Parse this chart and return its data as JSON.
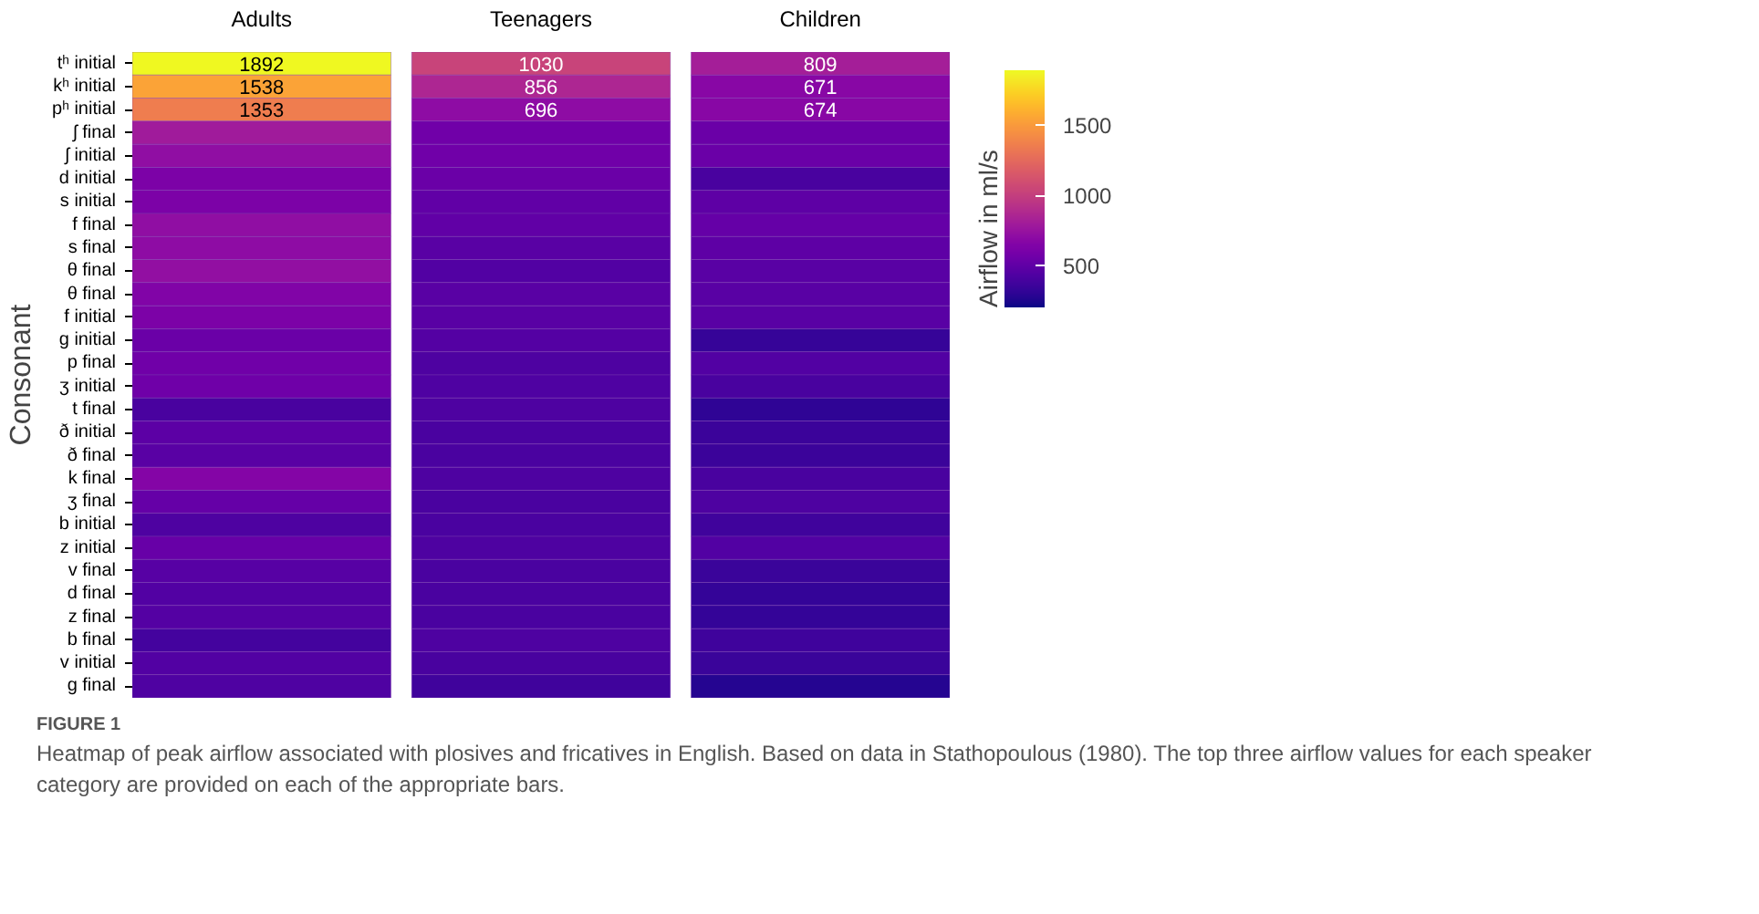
{
  "chart_data": {
    "type": "heatmap",
    "ylabel": "Consonant",
    "categories": [
      "Adults",
      "Teenagers",
      "Children"
    ],
    "y_categories": [
      "tʰ initial",
      "kʰ initial",
      "pʰ initial",
      "ʃ final",
      "ʃ initial",
      "d initial",
      "s initial",
      "f final",
      "s final",
      "θ final",
      "θ final",
      "f initial",
      "g initial",
      "p final",
      "ʒ initial",
      "t final",
      "ð initial",
      "ð final",
      "k final",
      "ʒ final",
      "b initial",
      "z initial",
      "v final",
      "d final",
      "z final",
      "b final",
      "v initial",
      "g final"
    ],
    "cells": [
      [
        1892,
        1030,
        809
      ],
      [
        1538,
        856,
        671
      ],
      [
        1353,
        696,
        674
      ],
      [
        790,
        570,
        540
      ],
      [
        710,
        570,
        540
      ],
      [
        620,
        540,
        400
      ],
      [
        620,
        500,
        490
      ],
      [
        710,
        500,
        520
      ],
      [
        700,
        470,
        490
      ],
      [
        720,
        440,
        470
      ],
      [
        640,
        470,
        470
      ],
      [
        620,
        470,
        470
      ],
      [
        540,
        450,
        330
      ],
      [
        570,
        420,
        440
      ],
      [
        560,
        430,
        400
      ],
      [
        400,
        420,
        300
      ],
      [
        480,
        410,
        350
      ],
      [
        470,
        410,
        350
      ],
      [
        650,
        420,
        400
      ],
      [
        520,
        410,
        420
      ],
      [
        420,
        410,
        370
      ],
      [
        530,
        420,
        440
      ],
      [
        460,
        410,
        340
      ],
      [
        440,
        410,
        320
      ],
      [
        450,
        410,
        320
      ],
      [
        380,
        420,
        360
      ],
      [
        440,
        400,
        340
      ],
      [
        430,
        370,
        270
      ]
    ],
    "cell_labels": [
      [
        "1892",
        "1030",
        "809"
      ],
      [
        "1538",
        "856",
        "671"
      ],
      [
        "1353",
        "696",
        "674"
      ],
      [
        null,
        null,
        null
      ],
      [
        null,
        null,
        null
      ],
      [
        null,
        null,
        null
      ],
      [
        null,
        null,
        null
      ],
      [
        null,
        null,
        null
      ],
      [
        null,
        null,
        null
      ],
      [
        null,
        null,
        null
      ],
      [
        null,
        null,
        null
      ],
      [
        null,
        null,
        null
      ],
      [
        null,
        null,
        null
      ],
      [
        null,
        null,
        null
      ],
      [
        null,
        null,
        null
      ],
      [
        null,
        null,
        null
      ],
      [
        null,
        null,
        null
      ],
      [
        null,
        null,
        null
      ],
      [
        null,
        null,
        null
      ],
      [
        null,
        null,
        null
      ],
      [
        null,
        null,
        null
      ],
      [
        null,
        null,
        null
      ],
      [
        null,
        null,
        null
      ],
      [
        null,
        null,
        null
      ],
      [
        null,
        null,
        null
      ],
      [
        null,
        null,
        null
      ],
      [
        null,
        null,
        null
      ],
      [
        null,
        null,
        null
      ]
    ],
    "clim": [
      200,
      1892
    ],
    "cticks": [
      500,
      1000,
      1500
    ],
    "clabel": "Airflow in ml/s",
    "annotations": [
      "FIGURE 1",
      "Heatmap of peak airflow associated with plosives and fricatives in English. Based on data in Stathopoulous (1980). The top three airflow values for each speaker category are provided on each of the appropriate bars."
    ]
  }
}
